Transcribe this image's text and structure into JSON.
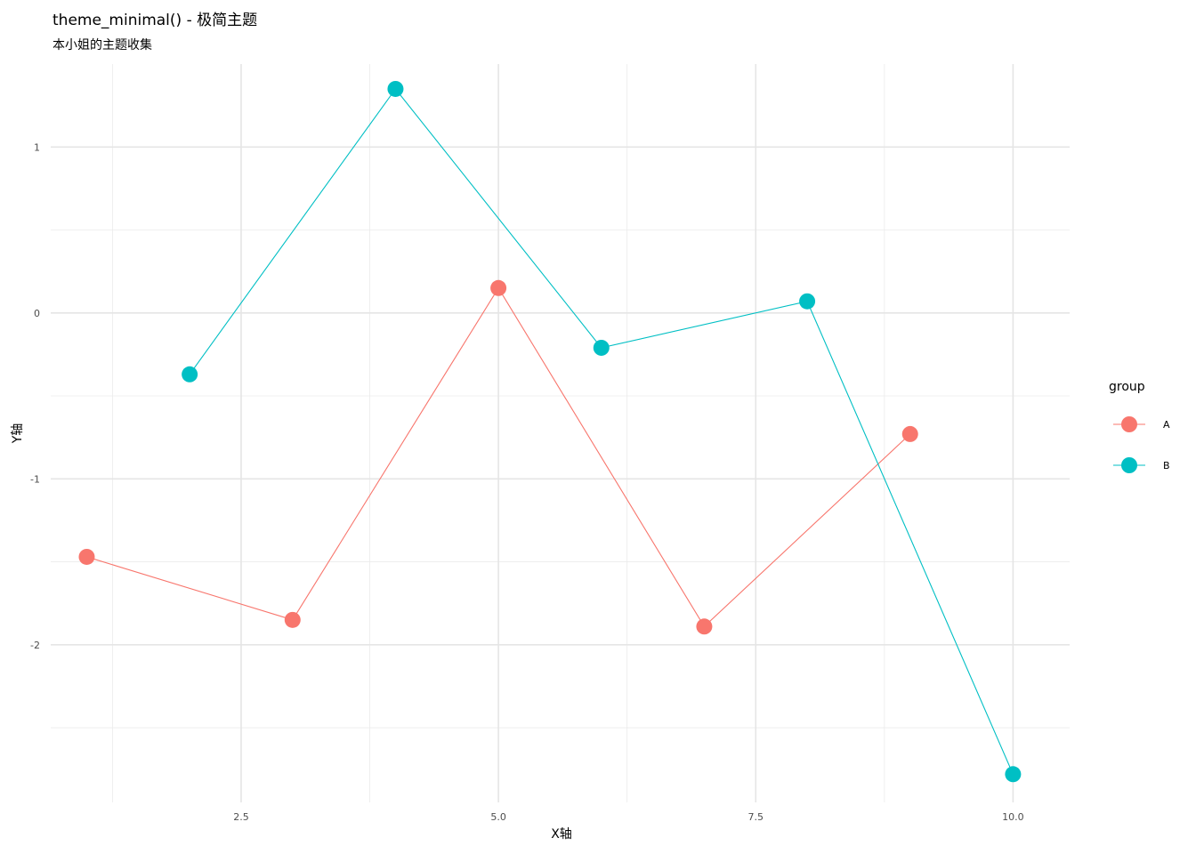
{
  "chart_data": {
    "type": "line",
    "title": "theme_minimal() - 极简主题",
    "subtitle": "本小姐的主题收集",
    "xlabel": "X轴",
    "ylabel": "Y轴",
    "xlim": [
      0.65,
      10.55
    ],
    "ylim": [
      -2.95,
      1.5
    ],
    "x_ticks": [
      2.5,
      5.0,
      7.5,
      10.0
    ],
    "x_tick_labels": [
      "2.5",
      "5.0",
      "7.5",
      "10.0"
    ],
    "x_minor": [
      1.25,
      3.75,
      6.25,
      8.75
    ],
    "y_ticks": [
      1,
      0,
      -1,
      -2
    ],
    "y_tick_labels": [
      "1",
      "0",
      "-1",
      "-2"
    ],
    "y_minor": [
      0.5,
      -0.5,
      -1.5,
      -2.5
    ],
    "grid": true,
    "legend": {
      "title": "group",
      "placement": "right"
    },
    "series": [
      {
        "name": "A",
        "color": "#F8766D",
        "x": [
          1,
          3,
          5,
          7,
          9
        ],
        "y": [
          -1.47,
          -1.85,
          0.15,
          -1.89,
          -0.73
        ]
      },
      {
        "name": "B",
        "color": "#00BFC4",
        "x": [
          2,
          4,
          6,
          8,
          10
        ],
        "y": [
          -0.37,
          1.35,
          -0.21,
          0.07,
          -2.78
        ]
      }
    ]
  }
}
